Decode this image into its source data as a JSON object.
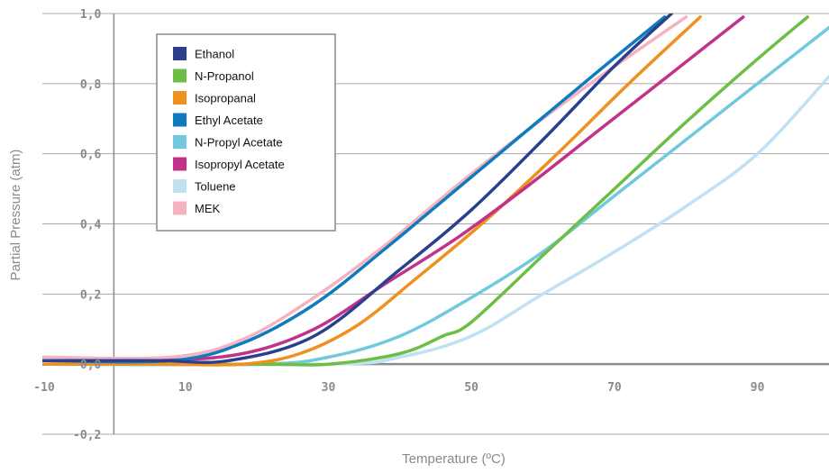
{
  "chart_data": {
    "type": "line",
    "xlabel": "Temperature (ºC)",
    "ylabel": "Partial Pressure (atm)",
    "xlim": [
      -10,
      100
    ],
    "ylim": [
      -0.2,
      1.0
    ],
    "x_ticks": [
      "-10",
      "10",
      "30",
      "50",
      "70",
      "90"
    ],
    "x_tick_values": [
      -10,
      10,
      30,
      50,
      70,
      90
    ],
    "y_ticks": [
      "1,0",
      "0,8",
      "0,6",
      "0,4",
      "0,2",
      "0,0",
      "-0,2"
    ],
    "y_tick_values": [
      1.0,
      0.8,
      0.6,
      0.4,
      0.2,
      0.0,
      -0.2
    ],
    "grid": "horizontal",
    "legend_position": "top-left",
    "series": [
      {
        "name": "Ethanol",
        "color": "#2b3f8f",
        "x": [
          -10,
          6,
          16,
          28,
          40,
          50,
          60,
          70,
          78
        ],
        "y": [
          0.01,
          0.01,
          0.01,
          0.08,
          0.27,
          0.44,
          0.64,
          0.85,
          1.0
        ]
      },
      {
        "name": "N-Propanol",
        "color": "#6cbe45",
        "x": [
          -10,
          20,
          30,
          40,
          46,
          50,
          60,
          70,
          80,
          90,
          97
        ],
        "y": [
          0.0,
          0.0,
          0.0,
          0.03,
          0.08,
          0.12,
          0.31,
          0.5,
          0.69,
          0.87,
          0.99
        ]
      },
      {
        "name": "Isopropanal",
        "color": "#f0901e",
        "x": [
          -10,
          6,
          18,
          26,
          34,
          42,
          52,
          62,
          72,
          82
        ],
        "y": [
          0.0,
          0.0,
          0.0,
          0.03,
          0.11,
          0.24,
          0.41,
          0.6,
          0.8,
          0.99
        ]
      },
      {
        "name": "Ethyl Acetate",
        "color": "#0f7bbd",
        "x": [
          -10,
          8,
          18,
          28,
          38,
          48,
          58,
          68,
          77
        ],
        "y": [
          0.01,
          0.01,
          0.06,
          0.17,
          0.33,
          0.5,
          0.67,
          0.84,
          0.99
        ]
      },
      {
        "name": "N-Propyl Acetate",
        "color": "#72c9de",
        "x": [
          -10,
          20,
          30,
          40,
          50,
          60,
          70,
          80,
          90,
          100
        ],
        "y": [
          0.0,
          0.0,
          0.02,
          0.08,
          0.19,
          0.32,
          0.48,
          0.64,
          0.8,
          0.96
        ]
      },
      {
        "name": "Isopropyl Acetate",
        "color": "#c2318a",
        "x": [
          -10,
          6,
          18,
          28,
          38,
          48,
          58,
          68,
          78,
          88
        ],
        "y": [
          0.01,
          0.01,
          0.03,
          0.1,
          0.23,
          0.36,
          0.51,
          0.67,
          0.83,
          0.99
        ]
      },
      {
        "name": "Toluene",
        "color": "#bfe1f2",
        "x": [
          -10,
          30,
          40,
          50,
          60,
          70,
          80,
          90,
          100
        ],
        "y": [
          0.0,
          0.0,
          0.02,
          0.08,
          0.2,
          0.32,
          0.45,
          0.6,
          0.82
        ]
      },
      {
        "name": "MEK",
        "color": "#f5b2c0",
        "x": [
          -10,
          8,
          18,
          28,
          38,
          48,
          58,
          68,
          80
        ],
        "y": [
          0.02,
          0.02,
          0.07,
          0.19,
          0.34,
          0.51,
          0.67,
          0.82,
          0.99
        ]
      }
    ]
  },
  "legend": {
    "title": ""
  }
}
